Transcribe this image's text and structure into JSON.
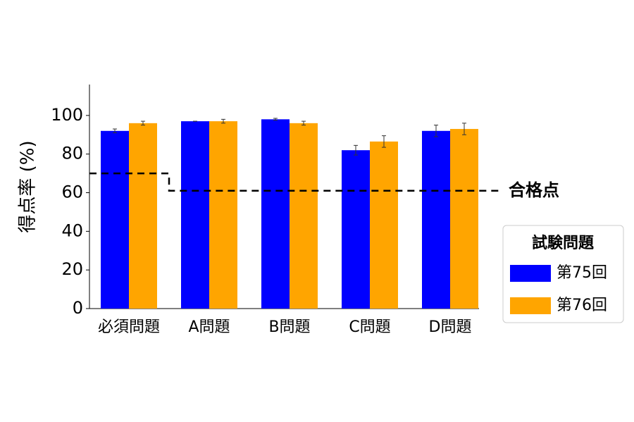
{
  "chart_data": {
    "type": "bar",
    "y_label": "得点率 (%)",
    "categories": [
      "必須問題",
      "A問題",
      "B問題",
      "C問題",
      "D問題"
    ],
    "series": [
      {
        "name": "第75回",
        "color": "#0000ff",
        "values": [
          92,
          97,
          98,
          82,
          92
        ],
        "errors": [
          1,
          0,
          0.5,
          2.5,
          3
        ]
      },
      {
        "name": "第76回",
        "color": "#ffa500",
        "values": [
          96,
          97,
          96,
          86.5,
          93
        ],
        "errors": [
          1,
          1,
          1,
          3,
          3
        ]
      }
    ],
    "ylim": [
      0,
      116
    ],
    "yticks": [
      0,
      20,
      40,
      60,
      80,
      100
    ],
    "legend_title": "試験問題",
    "threshold": {
      "label": "合格点",
      "values": [
        70,
        61
      ]
    }
  }
}
